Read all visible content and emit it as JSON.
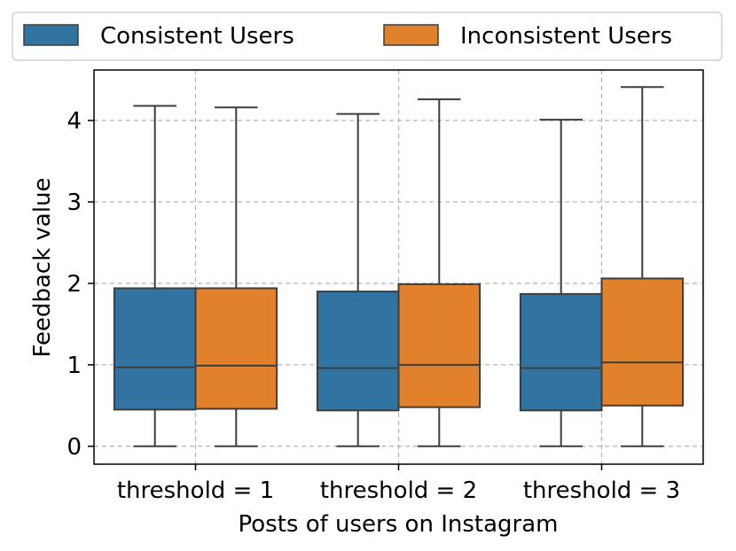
{
  "chart_data": {
    "type": "box",
    "title": "",
    "xlabel": "Posts of users on Instagram",
    "ylabel": "Feedback value",
    "categories": [
      "threshold = 1",
      "threshold = 2",
      "threshold = 3"
    ],
    "ylim": [
      -0.22,
      4.62
    ],
    "yticks": [
      0,
      1,
      2,
      3,
      4
    ],
    "grid": true,
    "legend_position": "top",
    "series": [
      {
        "name": "Consistent Users",
        "color": "#3274a1",
        "boxes": [
          {
            "whislo": 0.0,
            "q1": 0.45,
            "med": 0.97,
            "q3": 1.94,
            "whishi": 4.18
          },
          {
            "whislo": 0.0,
            "q1": 0.44,
            "med": 0.96,
            "q3": 1.9,
            "whishi": 4.08
          },
          {
            "whislo": 0.0,
            "q1": 0.44,
            "med": 0.96,
            "q3": 1.87,
            "whishi": 4.01
          }
        ]
      },
      {
        "name": "Inconsistent Users",
        "color": "#e1812c",
        "boxes": [
          {
            "whislo": 0.0,
            "q1": 0.46,
            "med": 0.99,
            "q3": 1.94,
            "whishi": 4.16
          },
          {
            "whislo": 0.0,
            "q1": 0.48,
            "med": 1.0,
            "q3": 1.99,
            "whishi": 4.26
          },
          {
            "whislo": 0.0,
            "q1": 0.5,
            "med": 1.03,
            "q3": 2.06,
            "whishi": 4.41
          }
        ]
      }
    ]
  }
}
